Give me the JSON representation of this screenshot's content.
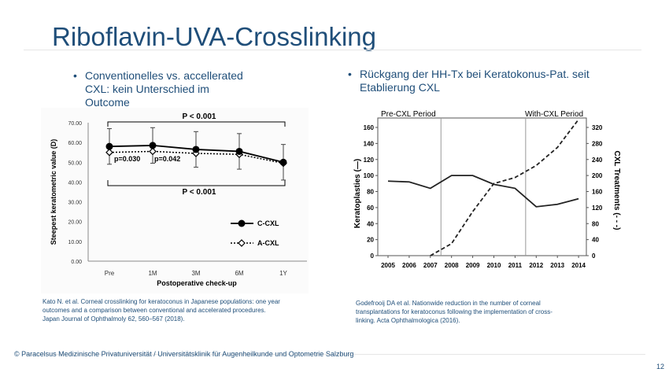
{
  "slide": {
    "title": "Riboflavin-UVA-Crosslinking",
    "bullet_left_line1": "Conventionelles vs. accellerated",
    "bullet_left_line2": "CXL: kein Unterschied im",
    "bullet_left_line3": "Outcome",
    "bullet_right_line1": "Rückgang der HH-Tx bei Keratokonus-Pat. seit",
    "bullet_right_line2": "Etablierung CXL",
    "bullet_symbol": "•",
    "citation_left_line1": "Kato N. et al. Corneal crosslinking for keratoconus in Japanese populations: one year",
    "citation_left_line2": "outcomes and a comparison between conventional and accelerated procedures.",
    "citation_left_line3": "Japan Journal of Ophthalmoly 62, 560–567 (2018).",
    "citation_right_line1": "Godefrooij DA et al. Nationwide reduction in the number of corneal",
    "citation_right_line2": "transplantations for keratoconus following the implementation of cross-",
    "citation_right_line3": "linking. Acta Ophthalmologica (2016).",
    "footer": "© Paracelsus Medizinische Privatuniversität / Universitätsklinik für Augenheilkunde und Optometrie Salzburg",
    "page_number": "12"
  },
  "chart_data": [
    {
      "type": "line",
      "xlabel": "Postoperative check-up",
      "ylabel": "Steepest keratometric value (D)",
      "categories": [
        "Pre",
        "1M",
        "3M",
        "6M",
        "1Y"
      ],
      "ylim": [
        0,
        70
      ],
      "yticks": [
        "0.00",
        "10.00",
        "20.00",
        "30.00",
        "40.00",
        "50.00",
        "60.00",
        "70.00"
      ],
      "series": [
        {
          "name": "C-CXL",
          "values": [
            58.0,
            58.5,
            56.5,
            55.5,
            50.0
          ],
          "marker": "filled-circle",
          "line": "solid"
        },
        {
          "name": "A-CXL",
          "values": [
            55.0,
            55.5,
            54.5,
            54.0,
            49.5
          ],
          "marker": "open-diamond",
          "line": "dotted"
        }
      ],
      "error_half_width": 9,
      "annotations": [
        "P < 0.001",
        "p=0.030",
        "p=0.042",
        "P < 0.001"
      ],
      "legend": "bottom-right",
      "grid": false
    },
    {
      "type": "line",
      "xlabel": "",
      "ylabel": "Keratoplasties (—)",
      "ylabel_right": "CXL Treatments (- - -)",
      "categories": [
        "2005",
        "2006",
        "2007",
        "2008",
        "2009",
        "2010",
        "2011",
        "2012",
        "2013",
        "2014"
      ],
      "ylim": [
        0,
        160
      ],
      "yticks": [
        "0",
        "20",
        "40",
        "60",
        "80",
        "100",
        "120",
        "140",
        "160"
      ],
      "ylim_right": [
        0,
        320
      ],
      "yticks_right": [
        "0",
        "40",
        "80",
        "120",
        "160",
        "200",
        "240",
        "280",
        "320"
      ],
      "periods": [
        "Pre-CXL Period",
        "With-CXL Period"
      ],
      "series": [
        {
          "name": "Keratoplasties",
          "axis": "left",
          "line": "solid",
          "x": [
            2005,
            2006,
            2007,
            2008,
            2009,
            2010,
            2011,
            2012,
            2013,
            2014
          ],
          "values": [
            93,
            92,
            84,
            100,
            100,
            89,
            84,
            61,
            64,
            71
          ]
        },
        {
          "name": "CXL Treatments",
          "axis": "right",
          "line": "dashed",
          "x": [
            2007,
            2008,
            2009,
            2010,
            2011,
            2012,
            2013,
            2014
          ],
          "values": [
            0,
            30,
            110,
            180,
            195,
            225,
            270,
            340
          ]
        }
      ],
      "period_dividers": [
        2007.5,
        2011.5
      ],
      "grid": false
    }
  ]
}
